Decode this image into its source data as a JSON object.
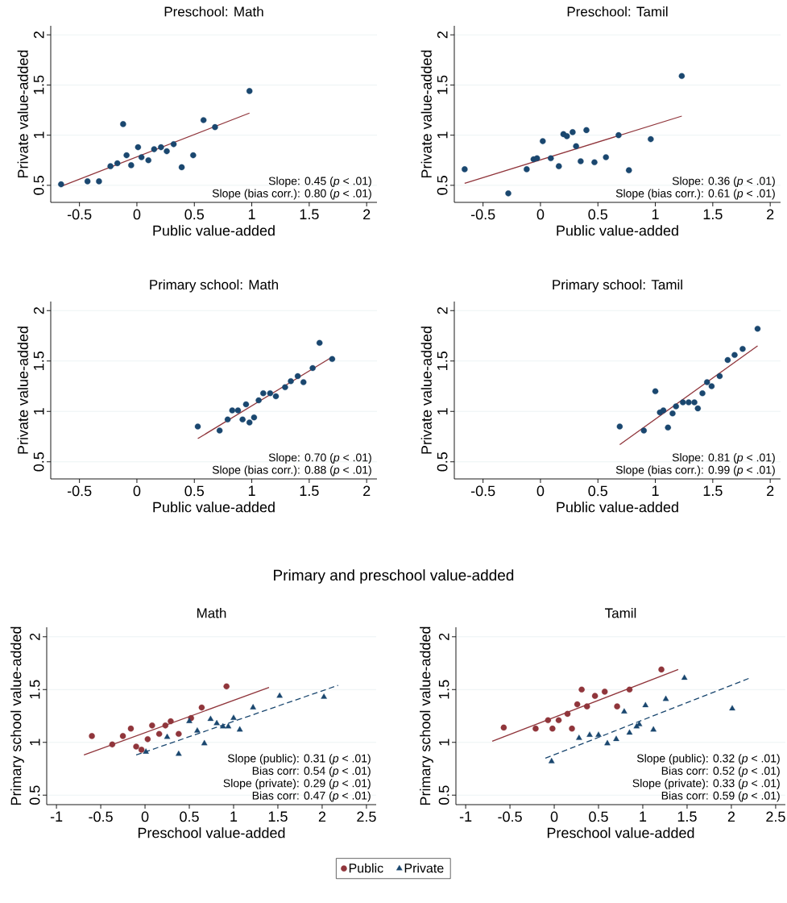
{
  "chart_data": [
    {
      "type": "scatter",
      "title": "Preschool: Math",
      "xlabel": "Public value-added",
      "ylabel": "Private value-added",
      "xlim": [
        -0.75,
        2.09
      ],
      "ylim": [
        0.33,
        2.09
      ],
      "xticks": [
        -0.5,
        0,
        0.5,
        1,
        1.5,
        2
      ],
      "yticks": [
        0.5,
        1,
        1.5,
        2
      ],
      "grid": "y",
      "annotations": [
        "Slope: 0.45 (*p* < .01)",
        "Slope (bias corr.): 0.80 (*p* < .01)"
      ],
      "series": [
        {
          "type": "scatter",
          "marker": "circle",
          "color": "#1a476f",
          "x": [
            -0.66,
            -0.43,
            -0.33,
            -0.23,
            -0.17,
            -0.12,
            -0.09,
            -0.05,
            0.01,
            0.04,
            0.1,
            0.15,
            0.21,
            0.26,
            0.32,
            0.39,
            0.49,
            0.58,
            0.68,
            0.98
          ],
          "values": [
            0.51,
            0.54,
            0.54,
            0.69,
            0.72,
            1.11,
            0.8,
            0.7,
            0.88,
            0.78,
            0.75,
            0.86,
            0.88,
            0.84,
            0.91,
            0.68,
            0.8,
            1.15,
            1.08,
            1.44
          ]
        },
        {
          "type": "line",
          "marker": "none",
          "line_style": "solid",
          "color": "#90353b",
          "x": [
            -0.66,
            0.98
          ],
          "values": [
            0.49,
            1.22
          ]
        }
      ]
    },
    {
      "type": "scatter",
      "title": "Preschool: Tamil",
      "xlabel": "Public value-added",
      "ylabel": "Private value-added",
      "xlim": [
        -0.75,
        2.09
      ],
      "ylim": [
        0.33,
        2.09
      ],
      "xticks": [
        -0.5,
        0,
        0.5,
        1,
        1.5,
        2
      ],
      "yticks": [
        0.5,
        1,
        1.5,
        2
      ],
      "grid": "y",
      "annotations": [
        "Slope: 0.36 (*p* < .01)",
        "Slope (bias corr.): 0.61 (*p* < .01)"
      ],
      "series": [
        {
          "type": "scatter",
          "marker": "circle",
          "color": "#1a476f",
          "x": [
            -0.66,
            -0.28,
            -0.12,
            -0.06,
            -0.03,
            0.02,
            0.09,
            0.16,
            0.2,
            0.23,
            0.28,
            0.31,
            0.35,
            0.4,
            0.47,
            0.57,
            0.68,
            0.77,
            0.96,
            1.23
          ],
          "values": [
            0.66,
            0.42,
            0.66,
            0.76,
            0.77,
            0.94,
            0.77,
            0.69,
            1.01,
            0.99,
            1.03,
            0.89,
            0.74,
            1.05,
            0.73,
            0.78,
            1.0,
            0.65,
            0.96,
            1.59
          ]
        },
        {
          "type": "line",
          "marker": "none",
          "line_style": "solid",
          "color": "#90353b",
          "x": [
            -0.66,
            1.23
          ],
          "values": [
            0.52,
            1.19
          ]
        }
      ]
    },
    {
      "type": "scatter",
      "title": "Primary school: Math",
      "xlabel": "Public value-added",
      "ylabel": "Private value-added",
      "xlim": [
        -0.75,
        2.09
      ],
      "ylim": [
        0.33,
        2.09
      ],
      "xticks": [
        -0.5,
        0,
        0.5,
        1,
        1.5,
        2
      ],
      "yticks": [
        0.5,
        1,
        1.5,
        2
      ],
      "grid": "y",
      "annotations": [
        "Slope: 0.70 (*p* < .01)",
        "Slope (bias corr.): 0.88 (*p* < .01)"
      ],
      "series": [
        {
          "type": "scatter",
          "marker": "circle",
          "color": "#1a476f",
          "x": [
            0.53,
            0.72,
            0.79,
            0.83,
            0.88,
            0.92,
            0.95,
            0.98,
            1.02,
            1.06,
            1.1,
            1.16,
            1.21,
            1.29,
            1.34,
            1.4,
            1.45,
            1.53,
            1.59,
            1.7
          ],
          "values": [
            0.85,
            0.81,
            0.92,
            1.01,
            1.01,
            0.92,
            1.07,
            0.89,
            0.94,
            1.11,
            1.18,
            1.18,
            1.15,
            1.24,
            1.3,
            1.35,
            1.29,
            1.43,
            1.68,
            1.52
          ]
        },
        {
          "type": "line",
          "marker": "none",
          "line_style": "solid",
          "color": "#90353b",
          "x": [
            0.53,
            1.7
          ],
          "values": [
            0.73,
            1.54
          ]
        }
      ]
    },
    {
      "type": "scatter",
      "title": "Primary school: Tamil",
      "xlabel": "Public value-added",
      "ylabel": "Private value-added",
      "xlim": [
        -0.75,
        2.09
      ],
      "ylim": [
        0.33,
        2.09
      ],
      "xticks": [
        -0.5,
        0,
        0.5,
        1,
        1.5,
        2
      ],
      "yticks": [
        0.5,
        1,
        1.5,
        2
      ],
      "grid": "y",
      "annotations": [
        "Slope: 0.81 (*p* < .01)",
        "Slope (bias corr.): 0.99 (*p* < .01)"
      ],
      "series": [
        {
          "type": "scatter",
          "marker": "circle",
          "color": "#1a476f",
          "x": [
            0.69,
            0.9,
            1.0,
            1.04,
            1.07,
            1.11,
            1.15,
            1.18,
            1.24,
            1.29,
            1.34,
            1.37,
            1.41,
            1.45,
            1.49,
            1.56,
            1.63,
            1.69,
            1.76,
            1.89
          ],
          "values": [
            0.85,
            0.81,
            1.2,
            0.99,
            1.01,
            0.84,
            0.98,
            1.05,
            1.09,
            1.09,
            1.09,
            1.03,
            1.18,
            1.29,
            1.25,
            1.35,
            1.51,
            1.56,
            1.62,
            1.82
          ]
        },
        {
          "type": "line",
          "marker": "none",
          "line_style": "solid",
          "color": "#90353b",
          "x": [
            0.69,
            1.89
          ],
          "values": [
            0.67,
            1.65
          ]
        }
      ]
    },
    {
      "type": "other",
      "title": "Primary and preschool value-added"
    },
    {
      "type": "scatter",
      "title": "Math",
      "xlabel": "Preschool value-added",
      "ylabel": "Primary school value-added",
      "xlim": [
        -1.11,
        2.61
      ],
      "ylim": [
        0.41,
        2.09
      ],
      "xticks": [
        -1,
        -0.5,
        0,
        0.5,
        1,
        1.5,
        2,
        2.5
      ],
      "yticks": [
        0.5,
        1,
        1.5,
        2
      ],
      "grid": "y",
      "annotations": [
        "Slope (public): 0.31 (*p* < .01)",
        "Bias corr: 0.54 (*p* < .01)",
        "Slope (private): 0.29 (*p* < .01)",
        "Bias corr: 0.47 (*p* < .01)"
      ],
      "series": [
        {
          "type": "scatter",
          "marker": "circle",
          "color": "#90353b",
          "x": [
            -0.6,
            -0.37,
            -0.25,
            -0.16,
            -0.1,
            -0.04,
            0.03,
            0.08,
            0.16,
            0.23,
            0.29,
            0.38,
            0.52,
            0.64,
            0.92
          ],
          "values": [
            1.06,
            0.98,
            1.06,
            1.13,
            0.96,
            0.93,
            1.03,
            1.16,
            1.08,
            1.16,
            1.2,
            1.08,
            1.23,
            1.33,
            1.53
          ]
        },
        {
          "type": "scatter",
          "marker": "triangle",
          "color": "#1a476f",
          "x": [
            0.01,
            0.25,
            0.38,
            0.5,
            0.59,
            0.67,
            0.74,
            0.81,
            0.88,
            0.94,
            1.0,
            1.07,
            1.22,
            1.52,
            2.02
          ],
          "values": [
            0.91,
            1.05,
            0.89,
            1.2,
            1.11,
            0.99,
            1.22,
            1.18,
            1.15,
            1.15,
            1.23,
            1.12,
            1.33,
            1.44,
            1.43
          ]
        },
        {
          "type": "line",
          "marker": "none",
          "line_style": "solid",
          "color": "#90353b",
          "x": [
            -0.69,
            1.4
          ],
          "values": [
            0.88,
            1.52
          ]
        },
        {
          "type": "line",
          "marker": "none",
          "line_style": "dashed",
          "color": "#1a476f",
          "x": [
            -0.1,
            2.18
          ],
          "values": [
            0.88,
            1.54
          ]
        }
      ]
    },
    {
      "type": "scatter",
      "title": "Tamil",
      "xlabel": "Preschool value-added",
      "ylabel": "Primary school value-added",
      "xlim": [
        -1.11,
        2.61
      ],
      "ylim": [
        0.41,
        2.09
      ],
      "xticks": [
        -1,
        -0.5,
        0,
        0.5,
        1,
        1.5,
        2,
        2.5
      ],
      "yticks": [
        0.5,
        1,
        1.5,
        2
      ],
      "grid": "y",
      "legend": "bottom",
      "annotations": [
        "Slope (public): 0.32 (*p* < .01)",
        "Bias corr: 0.52 (*p* < .01)",
        "Slope (private): 0.33 (*p* < .01)",
        "Bias corr: 0.59 (*p* < .01)"
      ],
      "series": [
        {
          "type": "scatter",
          "name": "Public",
          "marker": "circle",
          "color": "#90353b",
          "x": [
            -0.57,
            -0.21,
            -0.07,
            -0.02,
            0.05,
            0.15,
            0.2,
            0.26,
            0.31,
            0.37,
            0.46,
            0.57,
            0.71,
            0.85,
            1.21
          ],
          "values": [
            1.14,
            1.13,
            1.21,
            1.13,
            1.21,
            1.27,
            1.13,
            1.36,
            1.5,
            1.34,
            1.44,
            1.48,
            1.34,
            1.5,
            1.69
          ]
        },
        {
          "type": "scatter",
          "name": "Private",
          "marker": "triangle",
          "color": "#1a476f",
          "x": [
            -0.03,
            0.28,
            0.4,
            0.5,
            0.6,
            0.7,
            0.79,
            0.85,
            0.93,
            0.96,
            1.03,
            1.12,
            1.26,
            1.47,
            2.01
          ],
          "values": [
            0.82,
            1.04,
            1.07,
            1.07,
            0.99,
            1.03,
            1.29,
            1.09,
            1.15,
            1.17,
            1.35,
            1.12,
            1.41,
            1.61,
            1.32
          ]
        },
        {
          "type": "line",
          "marker": "none",
          "line_style": "solid",
          "color": "#90353b",
          "x": [
            -0.7,
            1.4
          ],
          "values": [
            1.01,
            1.69
          ]
        },
        {
          "type": "line",
          "marker": "none",
          "line_style": "dashed",
          "color": "#1a476f",
          "x": [
            -0.1,
            2.21
          ],
          "values": [
            0.85,
            1.61
          ]
        }
      ]
    }
  ]
}
